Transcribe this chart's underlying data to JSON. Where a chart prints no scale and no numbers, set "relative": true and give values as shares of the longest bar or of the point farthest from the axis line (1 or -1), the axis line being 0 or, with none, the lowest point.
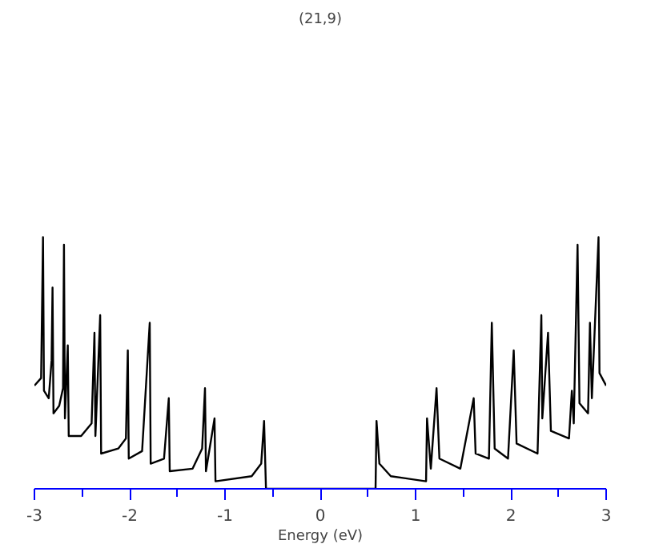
{
  "chart_data": {
    "type": "line",
    "title": "(21,9)",
    "xlabel": "Energy (eV)",
    "relative": true,
    "color": "#000000",
    "xlim": [
      -3,
      3
    ],
    "xticks": [
      -3,
      {
        "value": -2.5,
        "label": null
      },
      -2,
      {
        "value": -1.5,
        "label": null
      },
      -1,
      {
        "value": -0.5,
        "label": null
      },
      0,
      {
        "value": 0.5,
        "label": null
      },
      1,
      {
        "value": 1.5,
        "label": null
      },
      2,
      {
        "value": 2.5,
        "label": null
      },
      3
    ],
    "x": [
      -3.0,
      -2.93,
      -2.91,
      -2.9,
      -2.85,
      -2.82,
      -2.81,
      -2.8,
      -2.74,
      -2.7,
      -2.69,
      -2.68,
      -2.65,
      -2.64,
      -2.51,
      -2.4,
      -2.37,
      -2.36,
      -2.31,
      -2.3,
      -2.12,
      -2.04,
      -2.02,
      -2.01,
      -1.87,
      -1.79,
      -1.78,
      -1.64,
      -1.59,
      -1.58,
      -1.34,
      -1.24,
      -1.21,
      -1.2,
      -1.11,
      -1.1,
      -0.72,
      -0.62,
      -0.59,
      -0.57,
      0.58,
      0.59,
      0.62,
      0.74,
      1.11,
      1.12,
      1.16,
      1.22,
      1.25,
      1.47,
      1.61,
      1.63,
      1.77,
      1.8,
      1.83,
      1.97,
      2.03,
      2.06,
      2.28,
      2.32,
      2.33,
      2.39,
      2.42,
      2.61,
      2.64,
      2.66,
      2.7,
      2.72,
      2.81,
      2.83,
      2.85,
      2.92,
      2.93,
      3.0
    ],
    "values": [
      0.41,
      0.44,
      1.0,
      0.39,
      0.36,
      0.51,
      0.8,
      0.3,
      0.33,
      0.4,
      0.97,
      0.28,
      0.57,
      0.21,
      0.21,
      0.26,
      0.62,
      0.21,
      0.69,
      0.14,
      0.16,
      0.2,
      0.55,
      0.12,
      0.15,
      0.66,
      0.1,
      0.12,
      0.36,
      0.07,
      0.08,
      0.16,
      0.4,
      0.07,
      0.28,
      0.03,
      0.05,
      0.1,
      0.27,
      0.0,
      0.0,
      0.27,
      0.1,
      0.05,
      0.03,
      0.28,
      0.08,
      0.4,
      0.12,
      0.08,
      0.36,
      0.14,
      0.12,
      0.66,
      0.16,
      0.12,
      0.55,
      0.18,
      0.14,
      0.69,
      0.28,
      0.62,
      0.23,
      0.2,
      0.39,
      0.26,
      0.97,
      0.34,
      0.3,
      0.66,
      0.36,
      1.0,
      0.46,
      0.41
    ],
    "marker": "none",
    "line_style": "solid"
  }
}
